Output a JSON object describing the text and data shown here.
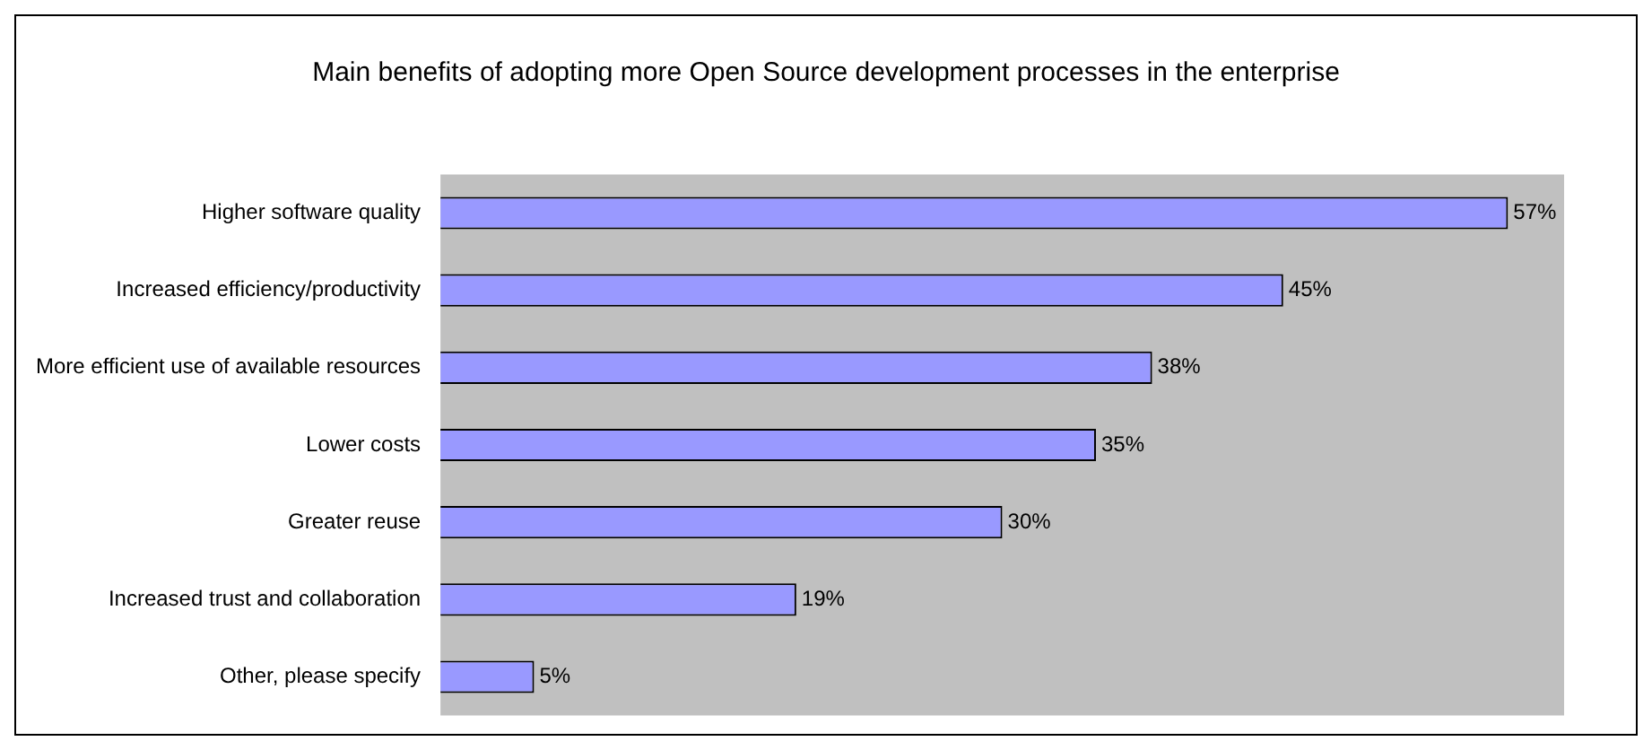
{
  "chart_data": {
    "type": "bar",
    "orientation": "horizontal",
    "title": "Main benefits of adopting more Open Source development processes in the enterprise",
    "categories": [
      "Higher software quality",
      "Increased efficiency/productivity",
      "More efficient use of available resources",
      "Lower costs",
      "Greater reuse",
      "Increased trust and collaboration",
      "Other, please specify"
    ],
    "values": [
      57,
      45,
      38,
      35,
      30,
      19,
      5
    ],
    "value_labels": [
      "57%",
      "45%",
      "38%",
      "35%",
      "30%",
      "19%",
      "5%"
    ],
    "color": "#9999ff",
    "xlim": [
      0,
      60
    ]
  }
}
